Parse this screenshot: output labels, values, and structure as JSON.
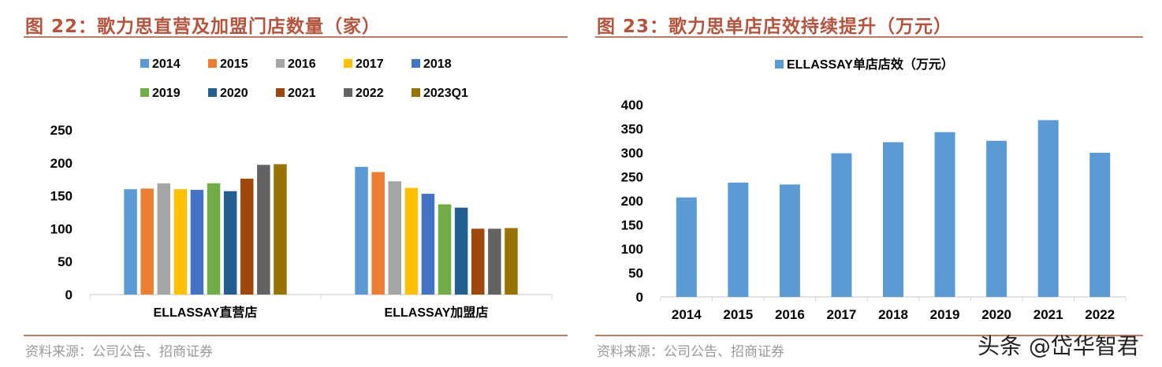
{
  "left": {
    "title": "图 22：歌力思直营及加盟门店数量（家）",
    "source": "资料来源：公司公告、招商证券"
  },
  "right": {
    "title": "图 23：歌力思单店店效持续提升（万元）",
    "source": "资料来源：公司公告、招商证券"
  },
  "watermark": "头条 @岱华智君",
  "chart_data": [
    {
      "type": "bar",
      "title": "",
      "categories": [
        "ELLASSAY直营店",
        "ELLASSAY加盟店"
      ],
      "ylim": [
        0,
        250
      ],
      "yticks": [
        0,
        50,
        100,
        150,
        200,
        250
      ],
      "legend_position": "top",
      "grid": false,
      "series": [
        {
          "name": "2014",
          "color": "#5b9bd5",
          "values": [
            160,
            194
          ]
        },
        {
          "name": "2015",
          "color": "#ed7d31",
          "values": [
            161,
            186
          ]
        },
        {
          "name": "2016",
          "color": "#a5a5a5",
          "values": [
            169,
            172
          ]
        },
        {
          "name": "2017",
          "color": "#ffc000",
          "values": [
            160,
            162
          ]
        },
        {
          "name": "2018",
          "color": "#4472c4",
          "values": [
            159,
            153
          ]
        },
        {
          "name": "2019",
          "color": "#70ad47",
          "values": [
            169,
            137
          ]
        },
        {
          "name": "2020",
          "color": "#255e91",
          "values": [
            157,
            132
          ]
        },
        {
          "name": "2021",
          "color": "#9e480e",
          "values": [
            176,
            100
          ]
        },
        {
          "name": "2022",
          "color": "#636363",
          "values": [
            197,
            100
          ]
        },
        {
          "name": "2023Q1",
          "color": "#997300",
          "values": [
            198,
            101
          ]
        }
      ]
    },
    {
      "type": "bar",
      "title": "",
      "categories": [
        "2014",
        "2015",
        "2016",
        "2017",
        "2018",
        "2019",
        "2020",
        "2021",
        "2022"
      ],
      "ylim": [
        0,
        400
      ],
      "yticks": [
        0,
        50,
        100,
        150,
        200,
        250,
        300,
        350,
        400
      ],
      "legend_position": "top",
      "grid": false,
      "series": [
        {
          "name": "ELLASSAY单店店效（万元）",
          "color": "#5b9bd5",
          "values": [
            207,
            238,
            234,
            299,
            322,
            343,
            325,
            368,
            300
          ]
        }
      ]
    }
  ]
}
